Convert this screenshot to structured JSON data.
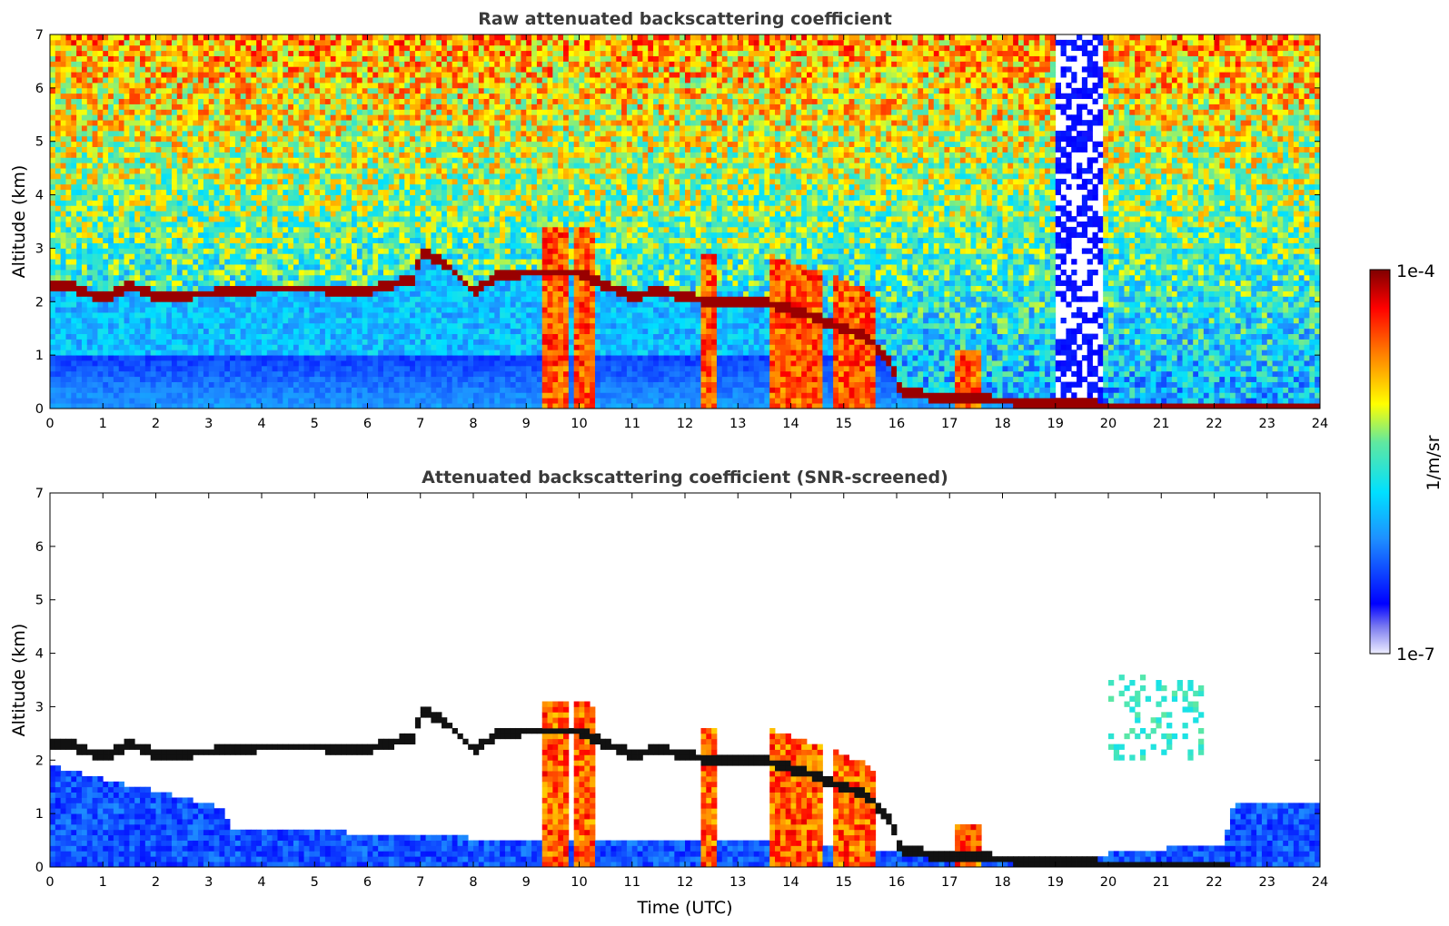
{
  "chart_data": [
    {
      "type": "heatmap",
      "title": "Raw attenuated backscattering coefficient",
      "xlabel": "",
      "ylabel": "Altitude (km)",
      "x_ticks": [
        "0",
        "1",
        "2",
        "3",
        "4",
        "5",
        "6",
        "7",
        "8",
        "9",
        "10",
        "11",
        "12",
        "13",
        "14",
        "15",
        "16",
        "17",
        "18",
        "19",
        "20",
        "21",
        "22",
        "23",
        "24"
      ],
      "y_ticks": [
        "0",
        "1",
        "2",
        "3",
        "4",
        "5",
        "6",
        "7"
      ],
      "xlim": [
        0,
        24
      ],
      "ylim": [
        0,
        7
      ],
      "features": {
        "boundary_layer_top_km": [
          [
            0.4,
            2.3
          ],
          [
            1.0,
            2.05
          ],
          [
            1.5,
            2.3
          ],
          [
            2.0,
            2.12
          ],
          [
            3.0,
            2.15
          ],
          [
            4.0,
            2.25
          ],
          [
            5.0,
            2.25
          ],
          [
            6.0,
            2.2
          ],
          [
            6.9,
            2.45
          ],
          [
            7.0,
            2.95
          ],
          [
            7.5,
            2.7
          ],
          [
            8.0,
            2.2
          ],
          [
            8.5,
            2.5
          ],
          [
            9.0,
            2.55
          ],
          [
            10.0,
            2.55
          ],
          [
            10.5,
            2.3
          ],
          [
            11.0,
            2.1
          ],
          [
            11.5,
            2.2
          ],
          [
            12.0,
            2.1
          ],
          [
            12.5,
            2.0
          ],
          [
            13.0,
            2.0
          ],
          [
            13.5,
            2.0
          ],
          [
            14.0,
            1.85
          ],
          [
            14.5,
            1.7
          ],
          [
            15.0,
            1.5
          ],
          [
            15.5,
            1.3
          ],
          [
            15.9,
            0.85
          ],
          [
            16.1,
            0.3
          ],
          [
            17.0,
            0.2
          ],
          [
            18.0,
            0.15
          ],
          [
            19.0,
            0.1
          ],
          [
            20.0,
            0.05
          ],
          [
            21.0,
            0.05
          ],
          [
            22.2,
            0.03
          ]
        ],
        "precipitation_columns_utc": [
          [
            9.3,
            9.8
          ],
          [
            9.9,
            10.3
          ],
          [
            12.3,
            12.6
          ],
          [
            13.6,
            14.6
          ],
          [
            14.8,
            15.6
          ],
          [
            17.1,
            17.6
          ]
        ],
        "clear_low_signal_window_utc": [
          19.0,
          19.9
        ]
      }
    },
    {
      "type": "heatmap",
      "title": "Attenuated backscattering coefficient (SNR-screened)",
      "xlabel": "Time (UTC)",
      "ylabel": "Altitude (km)",
      "x_ticks": [
        "0",
        "1",
        "2",
        "3",
        "4",
        "5",
        "6",
        "7",
        "8",
        "9",
        "10",
        "11",
        "12",
        "13",
        "14",
        "15",
        "16",
        "17",
        "18",
        "19",
        "20",
        "21",
        "22",
        "23",
        "24"
      ],
      "y_ticks": [
        "0",
        "1",
        "2",
        "3",
        "4",
        "5",
        "6",
        "7"
      ],
      "xlim": [
        0,
        24
      ],
      "ylim": [
        0,
        7
      ],
      "features": {
        "screened_signal_top_km": [
          [
            0,
            1.9
          ],
          [
            3.3,
            1.1
          ],
          [
            3.4,
            0.75
          ],
          [
            9.0,
            0.5
          ],
          [
            13.6,
            0.5
          ],
          [
            16.1,
            0.3
          ],
          [
            19.0,
            0.1
          ],
          [
            20.0,
            0.25
          ],
          [
            22.2,
            0.45
          ],
          [
            22.4,
            1.25
          ],
          [
            24.0,
            1.2
          ]
        ],
        "cirrus_patch_utc_km": [
          [
            20.0,
            21.8
          ],
          [
            2.0,
            3.6
          ]
        ]
      }
    }
  ],
  "colorbar": {
    "min_label": "1e-7",
    "max_label": "1e-4",
    "unit_label": "1/m/sr",
    "scale": "log",
    "colormap": "jet"
  }
}
